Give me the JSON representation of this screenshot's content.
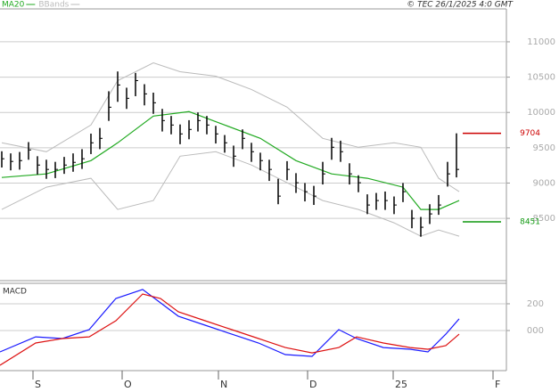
{
  "header": {
    "copyright": "© TEC 26/1/2025 4:0 GMT"
  },
  "chart_data": [
    {
      "type": "ohlc",
      "xlim": [
        -0.2,
        56.6
      ],
      "ylim": [
        7618,
        11466
      ],
      "yticks": [
        8500,
        9000,
        9500,
        10000,
        10500,
        11000
      ],
      "grid": true,
      "bar_color": "#000000",
      "high": [
        9450,
        9420,
        9440,
        9580,
        9380,
        9330,
        9300,
        9370,
        9420,
        9480,
        9700,
        9780,
        10300,
        10580,
        10350,
        10560,
        10400,
        10280,
        10050,
        9950,
        9830,
        9890,
        10000,
        9950,
        9810,
        9680,
        9530,
        9760,
        9570,
        9430,
        9330,
        9060,
        9310,
        9140,
        9000,
        8960,
        9300,
        9640,
        9600,
        9280,
        9110,
        8840,
        8860,
        8880,
        8810,
        9000,
        8620,
        8520,
        8700,
        8830,
        9300,
        9704
      ],
      "low": [
        9220,
        9180,
        9190,
        9330,
        9120,
        9060,
        9070,
        9130,
        9160,
        9200,
        9410,
        9480,
        9880,
        10150,
        10050,
        10230,
        10100,
        9980,
        9730,
        9690,
        9550,
        9620,
        9730,
        9690,
        9560,
        9430,
        9230,
        9480,
        9300,
        9180,
        9030,
        8700,
        9040,
        8860,
        8740,
        8690,
        8980,
        9330,
        9300,
        8980,
        8870,
        8560,
        8620,
        8620,
        8560,
        8730,
        8360,
        8240,
        8420,
        8550,
        8950,
        9080
      ],
      "close": [
        9344,
        9306,
        9318,
        9469,
        9255,
        9193,
        9193,
        9255,
        9293,
        9344,
        9570,
        9633,
        10074,
        10389,
        10200,
        10451,
        10263,
        10137,
        9885,
        9822,
        9696,
        9759,
        9885,
        9822,
        9696,
        9570,
        9381,
        9633,
        9444,
        9318,
        9193,
        8815,
        9193,
        9004,
        8878,
        8815,
        9130,
        9507,
        9444,
        9130,
        9004,
        8689,
        8752,
        8752,
        8689,
        8878,
        8500,
        8374,
        8563,
        8689,
        9130,
        9193
      ],
      "series": [
        {
          "name": "MA20",
          "color": "#22aa22",
          "x": [
            0,
            5,
            10,
            13,
            17,
            21,
            25,
            29,
            33,
            37,
            41,
            45,
            47,
            49,
            51.3
          ],
          "values": [
            9079,
            9130,
            9318,
            9570,
            9948,
            10011,
            9822,
            9633,
            9318,
            9130,
            9067,
            8941,
            8626,
            8626,
            8752
          ]
        },
        {
          "name": "BBands",
          "color": "#bbbbbb",
          "x": [
            0,
            5,
            10,
            13,
            17,
            20,
            24,
            28,
            32,
            36,
            40,
            44,
            47,
            49,
            51.3
          ],
          "upper": [
            9570,
            9444,
            9822,
            10451,
            10703,
            10577,
            10514,
            10326,
            10074,
            9633,
            9507,
            9570,
            9507,
            9067,
            8878
          ],
          "lower": [
            8626,
            8941,
            9067,
            8626,
            8752,
            9381,
            9444,
            9255,
            9004,
            8752,
            8626,
            8437,
            8248,
            8336,
            8248
          ]
        }
      ],
      "levels": [
        {
          "value": 9704,
          "color": "#cc0000"
        },
        {
          "value": 8451,
          "color": "#119911"
        }
      ]
    },
    {
      "type": "line",
      "title": "MACD",
      "xlim": [
        -0.2,
        56.6
      ],
      "ylim": [
        -293,
        353
      ],
      "yticks": [
        200,
        {
          "value": 0,
          "label": "000"
        }
      ],
      "xticks": [
        {
          "value": 3.5,
          "label": "S"
        },
        {
          "value": 13.5,
          "label": "O"
        },
        {
          "value": 24.3,
          "label": "N"
        },
        {
          "value": 34.3,
          "label": "D"
        },
        {
          "value": 43.9,
          "label": "25"
        },
        {
          "value": 55.1,
          "label": "F"
        }
      ],
      "series": [
        {
          "color": "#1a1aff",
          "x": [
            -0.2,
            3.8,
            6.8,
            9.8,
            12.8,
            15.8,
            17.8,
            19.8,
            22.8,
            25.8,
            28.8,
            31.8,
            34.8,
            37.8,
            39.8,
            42.8,
            45.8,
            47.8,
            49.8,
            51.3
          ],
          "values": [
            -160,
            -47,
            -60,
            7,
            240,
            307,
            207,
            107,
            40,
            -27,
            -93,
            -180,
            -193,
            7,
            -60,
            -127,
            -140,
            -160,
            -27,
            87
          ]
        },
        {
          "color": "#dd1111",
          "x": [
            -0.2,
            3.8,
            6.8,
            9.8,
            12.8,
            15.8,
            17.8,
            19.8,
            22.8,
            25.8,
            28.8,
            31.8,
            34.8,
            37.8,
            39.8,
            42.8,
            45.8,
            47.8,
            49.8,
            51.3
          ],
          "values": [
            -260,
            -93,
            -60,
            -47,
            73,
            273,
            240,
            140,
            73,
            7,
            -60,
            -127,
            -167,
            -127,
            -47,
            -93,
            -127,
            -140,
            -113,
            -27
          ]
        }
      ]
    }
  ]
}
